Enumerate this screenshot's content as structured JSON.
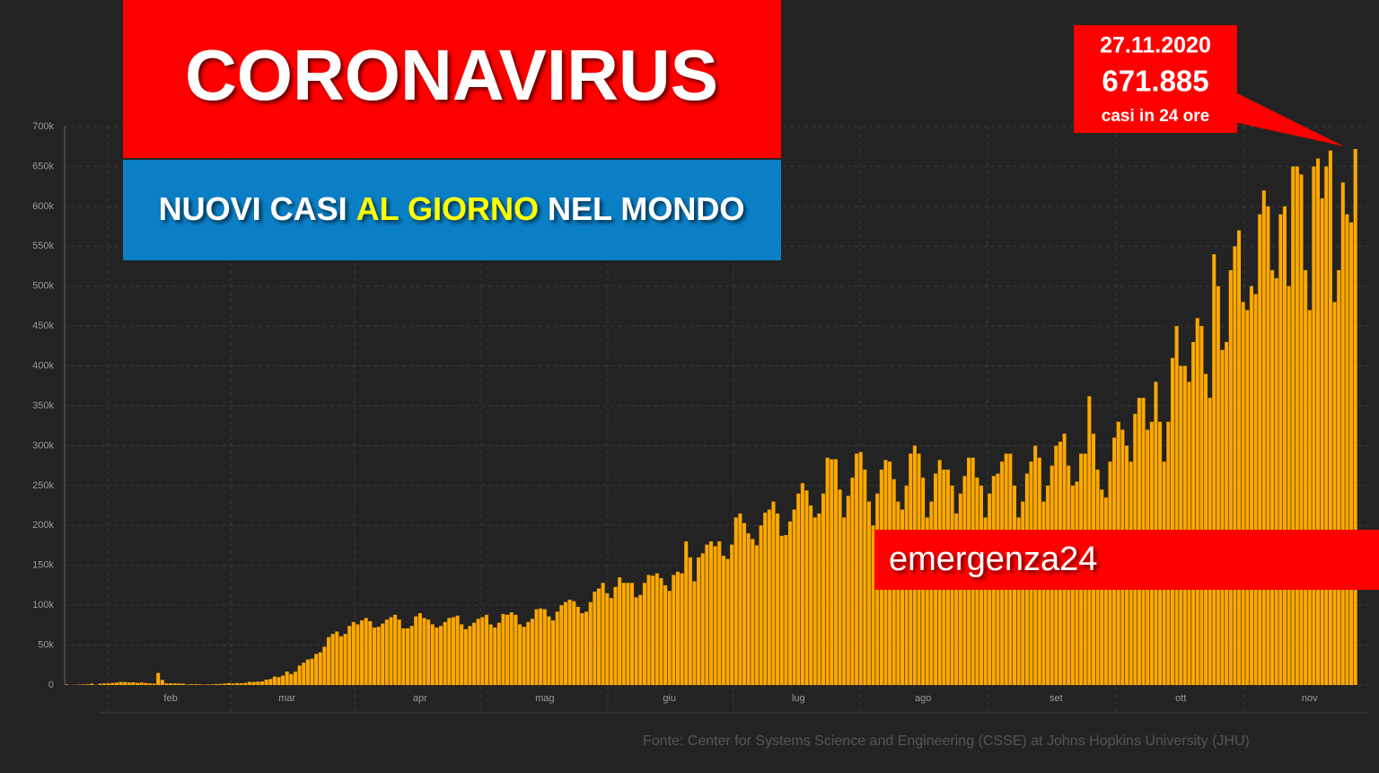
{
  "chart_data": {
    "type": "bar",
    "title": "CORONAVIRUS",
    "subtitle": [
      "NUOVI CASI",
      "AL GIORNO",
      "NEL MONDO"
    ],
    "annotation": {
      "date": "27.11.2020",
      "value": "671.885",
      "note": "casi in 24 ore"
    },
    "brand": "emergenza24",
    "source": "Fonte: Center for Systems Science and Engineering (CSSE) at Johns Hopkins University (JHU)",
    "color": "#ffa800",
    "grid": true,
    "ylim": [
      0,
      700000
    ],
    "yticks": [
      0,
      {
        "value": 50000,
        "label": "50k"
      },
      {
        "value": 100000,
        "label": "100k"
      },
      {
        "value": 150000,
        "label": "150k"
      },
      {
        "value": 200000,
        "label": "200k"
      },
      {
        "value": 250000,
        "label": "250k"
      },
      {
        "value": 300000,
        "label": "300k"
      },
      {
        "value": 350000,
        "label": "350k"
      },
      {
        "value": 400000,
        "label": "400k"
      },
      {
        "value": 450000,
        "label": "450k"
      },
      {
        "value": 500000,
        "label": "500k"
      },
      {
        "value": 550000,
        "label": "550k"
      },
      {
        "value": 600000,
        "label": "600k"
      },
      {
        "value": 650000,
        "label": "650k"
      },
      {
        "value": 700000,
        "label": "700k"
      }
    ],
    "categories": [
      null,
      null,
      null,
      null,
      null,
      null,
      null,
      null,
      null,
      null,
      null,
      null,
      null,
      null,
      null,
      null,
      null,
      null,
      null,
      null,
      null,
      null,
      null,
      null,
      null,
      "feb",
      null,
      null,
      null,
      null,
      null,
      null,
      null,
      null,
      null,
      null,
      null,
      null,
      null,
      null,
      null,
      null,
      null,
      null,
      null,
      null,
      null,
      null,
      null,
      null,
      null,
      null,
      null,
      "mar",
      null,
      null,
      null,
      null,
      null,
      null,
      null,
      null,
      null,
      null,
      null,
      null,
      null,
      null,
      null,
      null,
      null,
      null,
      null,
      null,
      null,
      null,
      null,
      null,
      null,
      null,
      null,
      null,
      null,
      null,
      null,
      "apr",
      null,
      null,
      null,
      null,
      null,
      null,
      null,
      null,
      null,
      null,
      null,
      null,
      null,
      null,
      null,
      null,
      null,
      null,
      null,
      null,
      null,
      null,
      null,
      null,
      null,
      null,
      null,
      null,
      null,
      "mag",
      null,
      null,
      null,
      null,
      null,
      null,
      null,
      null,
      null,
      null,
      null,
      null,
      null,
      null,
      null,
      null,
      null,
      null,
      null,
      null,
      null,
      null,
      null,
      null,
      null,
      null,
      null,
      null,
      null,
      "giu",
      null,
      null,
      null,
      null,
      null,
      null,
      null,
      null,
      null,
      null,
      null,
      null,
      null,
      null,
      null,
      null,
      null,
      null,
      null,
      null,
      null,
      null,
      null,
      null,
      null,
      null,
      null,
      null,
      null,
      null,
      "lug",
      null,
      null,
      null,
      null,
      null,
      null,
      null,
      null,
      null,
      null,
      null,
      null,
      null,
      null,
      null,
      null,
      null,
      null,
      null,
      null,
      null,
      null,
      null,
      null,
      null,
      null,
      null,
      null,
      null,
      "ago",
      null,
      null,
      null,
      null,
      null,
      null,
      null,
      null,
      null,
      null,
      null,
      null,
      null,
      null,
      null,
      null,
      null,
      null,
      null,
      null,
      null,
      null,
      null,
      null,
      null,
      null,
      null,
      null,
      null,
      null,
      null,
      "set",
      null,
      null,
      null,
      null,
      null,
      null,
      null,
      null,
      null,
      null,
      null,
      null,
      null,
      null,
      null,
      null,
      null,
      null,
      null,
      null,
      null,
      null,
      null,
      null,
      null,
      null,
      null,
      null,
      null,
      "ott",
      null,
      null,
      null,
      null,
      null,
      null,
      null,
      null,
      null,
      null,
      null,
      null,
      null,
      null,
      null,
      null,
      null,
      null,
      null,
      null,
      null,
      null,
      null,
      null,
      null,
      null,
      null,
      null,
      null,
      null,
      "nov",
      null,
      null,
      null,
      null,
      null,
      null,
      null,
      null,
      null,
      null,
      null
    ],
    "values": [
      600,
      100,
      300,
      500,
      700,
      800,
      1700,
      100,
      1700,
      2000,
      2100,
      2600,
      3000,
      3900,
      3700,
      3200,
      3400,
      2700,
      3000,
      2600,
      2000,
      1700,
      15100,
      6400,
      2000,
      2100,
      2000,
      1900,
      1700,
      600,
      1000,
      1000,
      900,
      500,
      800,
      900,
      1200,
      1400,
      1800,
      2400,
      1900,
      2400,
      2200,
      2700,
      3900,
      3900,
      4200,
      4500,
      6700,
      7400,
      10500,
      9800,
      11800,
      16900,
      13800,
      16600,
      24400,
      28000,
      32000,
      33000,
      39000,
      41000,
      48000,
      60000,
      64000,
      67000,
      61000,
      64000,
      74000,
      79000,
      76000,
      81000,
      84000,
      80000,
      72000,
      73000,
      77000,
      82000,
      85000,
      88000,
      82000,
      71000,
      71000,
      74000,
      86000,
      90000,
      84000,
      82000,
      76000,
      72000,
      74000,
      79000,
      84000,
      85000,
      87000,
      76000,
      70000,
      74000,
      78000,
      83000,
      85000,
      88000,
      76000,
      72000,
      78000,
      89000,
      88000,
      91000,
      88000,
      76000,
      73000,
      79000,
      83000,
      95000,
      96000,
      95000,
      86000,
      81000,
      92000,
      100000,
      104000,
      107000,
      105000,
      98000,
      90000,
      92000,
      104000,
      117000,
      121000,
      128000,
      115000,
      109000,
      123000,
      135000,
      128000,
      128000,
      128000,
      110000,
      113000,
      128000,
      138000,
      137000,
      140000,
      134000,
      125000,
      118000,
      138000,
      142000,
      140000,
      180000,
      160000,
      130000,
      160000,
      165000,
      176000,
      180000,
      174000,
      180000,
      162000,
      158000,
      176000,
      210000,
      215000,
      203000,
      190000,
      183000,
      175000,
      200000,
      216000,
      220000,
      230000,
      215000,
      187000,
      188000,
      205000,
      220000,
      240000,
      253000,
      244000,
      225000,
      210000,
      215000,
      240000,
      285000,
      283000,
      283000,
      245000,
      210000,
      237000,
      260000,
      290000,
      292000,
      270000,
      230000,
      200000,
      240000,
      270000,
      282000,
      280000,
      258000,
      230000,
      220000,
      250000,
      290000,
      300000,
      290000,
      260000,
      210000,
      230000,
      265000,
      282000,
      270000,
      270000,
      250000,
      215000,
      240000,
      262000,
      285000,
      285000,
      260000,
      250000,
      210000,
      240000,
      262000,
      265000,
      280000,
      290000,
      290000,
      250000,
      210000,
      230000,
      265000,
      280000,
      300000,
      285000,
      230000,
      250000,
      275000,
      300000,
      305000,
      315000,
      275000,
      250000,
      255000,
      290000,
      290000,
      362000,
      315000,
      270000,
      245000,
      235000,
      280000,
      310000,
      330000,
      320000,
      300000,
      280000,
      340000,
      360000,
      360000,
      320000,
      330000,
      380000,
      330000,
      280000,
      330000,
      410000,
      450000,
      400000,
      400000,
      380000,
      430000,
      460000,
      450000,
      390000,
      360000,
      540000,
      500000,
      420000,
      430000,
      520000,
      550000,
      570000,
      480000,
      470000,
      500000,
      490000,
      590000,
      620000,
      600000,
      520000,
      510000,
      590000,
      600000,
      500000,
      650000,
      650000,
      640000,
      520000,
      470000,
      650000,
      660000,
      610000,
      650000,
      670000,
      480000,
      520000,
      630000,
      590000,
      580000,
      671885
    ]
  }
}
